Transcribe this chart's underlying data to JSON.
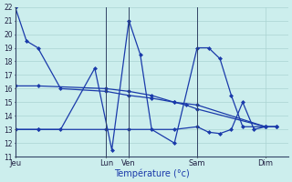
{
  "background_color": "#cceeed",
  "grid_color": "#aad4d2",
  "line_color": "#1a3aaa",
  "xlabel": "Température (°c)",
  "ylim": [
    11,
    22
  ],
  "yticks": [
    11,
    12,
    13,
    14,
    15,
    16,
    17,
    18,
    19,
    20,
    21,
    22
  ],
  "day_labels": [
    "Jeu",
    "Lun",
    "Ven",
    "Sam",
    "Dim"
  ],
  "day_positions": [
    0,
    8,
    10,
    16,
    22
  ],
  "xlim": [
    0,
    24
  ],
  "series": [
    {
      "x": [
        0,
        1,
        2,
        4,
        8,
        10,
        12,
        14,
        15,
        16,
        22
      ],
      "y": [
        22,
        19.5,
        19.0,
        16.0,
        15.8,
        15.5,
        15.3,
        15.0,
        14.8,
        14.5,
        13.2
      ]
    },
    {
      "x": [
        0,
        2,
        4,
        7,
        8.5,
        10,
        11,
        12,
        14,
        16,
        17,
        18,
        19,
        20,
        22,
        23
      ],
      "y": [
        13,
        13,
        13,
        17.5,
        11.5,
        21,
        18.5,
        13,
        12,
        19,
        19,
        18.2,
        15.5,
        13.2,
        13.2,
        13.2
      ]
    },
    {
      "x": [
        0,
        2,
        8,
        10,
        12,
        14,
        16,
        22,
        23
      ],
      "y": [
        16.2,
        16.2,
        16.0,
        15.8,
        15.5,
        15.0,
        14.8,
        13.2,
        13.2
      ]
    },
    {
      "x": [
        0,
        2,
        8,
        10,
        14,
        16,
        17,
        18,
        19,
        20,
        21,
        22,
        23
      ],
      "y": [
        13,
        13,
        13,
        13,
        13,
        13.2,
        12.8,
        12.7,
        13.0,
        15.0,
        13.0,
        13.2,
        13.2
      ]
    }
  ]
}
